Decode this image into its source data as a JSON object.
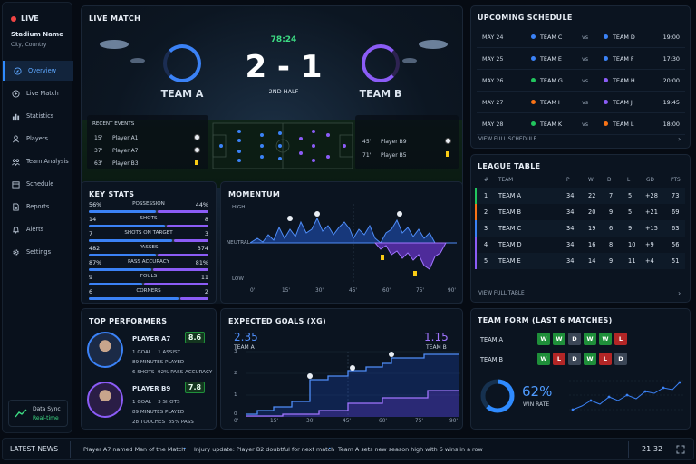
{
  "sidebar": {
    "live_label": "LIVE",
    "stadium": "Stadium Name",
    "location": "City, Country",
    "items": [
      {
        "label": "Overview",
        "icon": "compass-icon"
      },
      {
        "label": "Live Match",
        "icon": "play-icon"
      },
      {
        "label": "Statistics",
        "icon": "bar-chart-icon"
      },
      {
        "label": "Players",
        "icon": "users-icon"
      },
      {
        "label": "Team Analysis",
        "icon": "team-icon"
      },
      {
        "label": "Schedule",
        "icon": "calendar-icon"
      },
      {
        "label": "Reports",
        "icon": "document-icon"
      },
      {
        "label": "Alerts",
        "icon": "bell-icon"
      },
      {
        "label": "Settings",
        "icon": "gear-icon"
      }
    ],
    "sync_title": "Data Sync",
    "sync_status": "Real-time"
  },
  "match": {
    "title": "LIVE MATCH",
    "clock": "78:24",
    "score": "2 - 1",
    "period": "2ND HALF",
    "team_a": "TEAM A",
    "team_b": "TEAM B",
    "events_title": "RECENT EVENTS",
    "events_a": [
      {
        "minute": "15'",
        "player": "Player A1",
        "type": "goal"
      },
      {
        "minute": "37'",
        "player": "Player A7",
        "type": "goal"
      },
      {
        "minute": "63'",
        "player": "Player B3",
        "type": "yellow-card"
      }
    ],
    "events_b": [
      {
        "minute": "45'",
        "player": "Player B9",
        "type": "goal"
      },
      {
        "minute": "71'",
        "player": "Player B5",
        "type": "yellow-card"
      }
    ]
  },
  "key_stats": {
    "title": "KEY STATS",
    "rows": [
      {
        "label": "POSSESSION",
        "a": "56%",
        "b": "44%",
        "share_a": 0.56
      },
      {
        "label": "SHOTS",
        "a": "14",
        "b": "8",
        "share_a": 0.64
      },
      {
        "label": "SHOTS ON TARGET",
        "a": "7",
        "b": "3",
        "share_a": 0.7
      },
      {
        "label": "PASSES",
        "a": "482",
        "b": "374",
        "share_a": 0.56
      },
      {
        "label": "PASS ACCURACY",
        "a": "87%",
        "b": "81%",
        "share_a": 0.52
      },
      {
        "label": "FOULS",
        "a": "9",
        "b": "11",
        "share_a": 0.45
      },
      {
        "label": "CORNERS",
        "a": "6",
        "b": "2",
        "share_a": 0.75
      }
    ]
  },
  "momentum": {
    "title": "MOMENTUM",
    "y_high": "HIGH",
    "y_neutral": "NEUTRAL",
    "y_low": "LOW",
    "x_ticks": [
      "0'",
      "15'",
      "30'",
      "45'",
      "60'",
      "75'",
      "90'"
    ]
  },
  "performers": {
    "title": "TOP PERFORMERS",
    "players": [
      {
        "name": "PLAYER A7",
        "rating": "8.6",
        "s1v": "1",
        "s1l": "GOAL",
        "s2v": "1",
        "s2l": "ASSIST",
        "s3v": "89",
        "s3l": "MINUTES PLAYED",
        "s4v": "6",
        "s4l": "SHOTS",
        "s5v": "92%",
        "s5l": "PASS ACCURACY"
      },
      {
        "name": "PLAYER B9",
        "rating": "7.8",
        "s1v": "1",
        "s1l": "GOAL",
        "s2v": "3",
        "s2l": "SHOTS",
        "s3v": "89",
        "s3l": "MINUTES PLAYED",
        "s4v": "28",
        "s4l": "TOUCHES",
        "s5v": "85%",
        "s5l": "PASS ACCURACY"
      }
    ]
  },
  "xg": {
    "title": "EXPECTED GOALS (XG)",
    "team_a_value": "2.35",
    "team_a": "TEAM A",
    "team_b_value": "1.15",
    "team_b": "TEAM B",
    "y_ticks": [
      "0",
      "1",
      "2",
      "3"
    ],
    "x_ticks": [
      "0'",
      "15'",
      "30'",
      "45'",
      "60'",
      "75'",
      "90'"
    ]
  },
  "schedule": {
    "title": "UPCOMING SCHEDULE",
    "vs": "vs",
    "rows": [
      {
        "date": "MAY 24",
        "home": "TEAM C",
        "away": "TEAM D",
        "time": "19:00",
        "home_color": "#3b82f6",
        "away_color": "#3b82f6"
      },
      {
        "date": "MAY 25",
        "home": "TEAM E",
        "away": "TEAM F",
        "time": "17:30",
        "home_color": "#3b82f6",
        "away_color": "#3b82f6"
      },
      {
        "date": "MAY 26",
        "home": "TEAM G",
        "away": "TEAM H",
        "time": "20:00",
        "home_color": "#22c55e",
        "away_color": "#8b5cf6"
      },
      {
        "date": "MAY 27",
        "home": "TEAM I",
        "away": "TEAM J",
        "time": "19:45",
        "home_color": "#f97316",
        "away_color": "#8b5cf6"
      },
      {
        "date": "MAY 28",
        "home": "TEAM K",
        "away": "TEAM L",
        "time": "18:00",
        "home_color": "#22c55e",
        "away_color": "#f97316"
      }
    ],
    "view_all": "VIEW FULL SCHEDULE"
  },
  "league": {
    "title": "LEAGUE TABLE",
    "headers": [
      "#",
      "TEAM",
      "P",
      "W",
      "D",
      "L",
      "GD",
      "PTS"
    ],
    "rows": [
      {
        "pos": "1",
        "team": "TEAM A",
        "p": "34",
        "w": "22",
        "d": "7",
        "l": "5",
        "gd": "+28",
        "pts": "73",
        "color": "#22c55e"
      },
      {
        "pos": "2",
        "team": "TEAM B",
        "p": "34",
        "w": "20",
        "d": "9",
        "l": "5",
        "gd": "+21",
        "pts": "69",
        "color": "#f97316"
      },
      {
        "pos": "3",
        "team": "TEAM C",
        "p": "34",
        "w": "19",
        "d": "6",
        "l": "9",
        "gd": "+15",
        "pts": "63",
        "color": "#3b82f6"
      },
      {
        "pos": "4",
        "team": "TEAM D",
        "p": "34",
        "w": "16",
        "d": "8",
        "l": "10",
        "gd": "+9",
        "pts": "56",
        "color": "#8b5cf6"
      },
      {
        "pos": "5",
        "team": "TEAM E",
        "p": "34",
        "w": "14",
        "d": "9",
        "l": "11",
        "gd": "+4",
        "pts": "51",
        "color": "#8b5cf6"
      }
    ],
    "view_all": "VIEW FULL TABLE"
  },
  "form": {
    "title": "TEAM FORM (LAST 6 MATCHES)",
    "team_a": "TEAM A",
    "team_a_results": [
      "W",
      "W",
      "D",
      "W",
      "W",
      "L"
    ],
    "team_b": "TEAM B",
    "team_b_results": [
      "W",
      "L",
      "D",
      "W",
      "L",
      "D"
    ],
    "win_rate": "62%",
    "win_rate_fraction": 0.62,
    "win_rate_label": "WIN RATE"
  },
  "ticker": {
    "label": "LATEST NEWS",
    "items": [
      "Player A7 named Man of the Match",
      "Injury update: Player B2 doubtful for next match",
      "Team A sets new season high with 6 wins in a row"
    ],
    "time": "21:32"
  },
  "colors": {
    "team_a": "#3b82f6",
    "team_b": "#8b5cf6",
    "win": "#1f8f3a",
    "draw": "#3b4656",
    "loss": "#b32626",
    "accent": "#2f8bff",
    "clock": "#3ddc84",
    "live": "#ef4444"
  }
}
